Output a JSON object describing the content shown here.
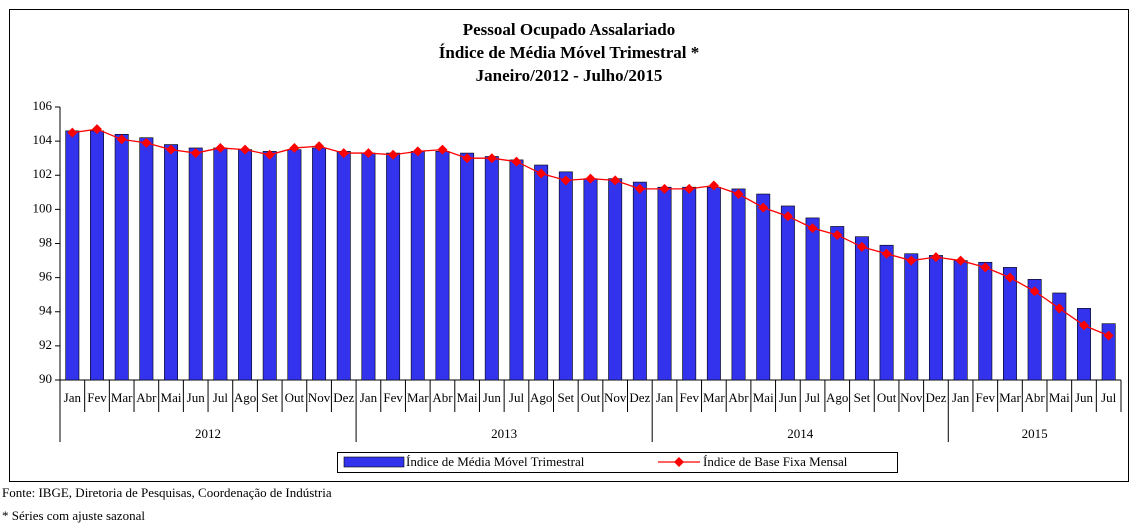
{
  "chart_data": {
    "type": "bar-line",
    "title": [
      "Pessoal Ocupado Assalariado",
      "Índice de Média Móvel Trimestral *",
      "Janeiro/2012 - Julho/2015"
    ],
    "categories": [
      "Jan",
      "Fev",
      "Mar",
      "Abr",
      "Mai",
      "Jun",
      "Jul",
      "Ago",
      "Set",
      "Out",
      "Nov",
      "Dez",
      "Jan",
      "Fev",
      "Mar",
      "Abr",
      "Mai",
      "Jun",
      "Jul",
      "Ago",
      "Set",
      "Out",
      "Nov",
      "Dez",
      "Jan",
      "Fev",
      "Mar",
      "Abr",
      "Mai",
      "Jun",
      "Jul",
      "Ago",
      "Set",
      "Out",
      "Nov",
      "Dez",
      "Jan",
      "Fev",
      "Mar",
      "Abr",
      "Mai",
      "Jun",
      "Jul"
    ],
    "years": [
      "2012",
      "2013",
      "2014",
      "2015"
    ],
    "series": [
      {
        "name": "Índice de Média Móvel Trimestral",
        "kind": "bar",
        "color": "#3333ee",
        "values": [
          104.6,
          104.6,
          104.4,
          104.2,
          103.8,
          103.6,
          103.6,
          103.5,
          103.4,
          103.5,
          103.6,
          103.4,
          103.3,
          103.3,
          103.4,
          103.4,
          103.3,
          103.1,
          102.9,
          102.6,
          102.2,
          101.8,
          101.8,
          101.6,
          101.3,
          101.3,
          101.3,
          101.2,
          100.9,
          100.2,
          99.5,
          99.0,
          98.4,
          97.9,
          97.4,
          97.3,
          97.0,
          96.9,
          96.6,
          95.9,
          95.1,
          94.2,
          93.3
        ]
      },
      {
        "name": "Índice de Base Fixa Mensal",
        "kind": "line",
        "color": "#ff0000",
        "values": [
          104.5,
          104.7,
          104.1,
          103.9,
          103.5,
          103.3,
          103.6,
          103.5,
          103.2,
          103.6,
          103.7,
          103.3,
          103.3,
          103.2,
          103.4,
          103.5,
          103.0,
          103.0,
          102.8,
          102.1,
          101.7,
          101.8,
          101.7,
          101.2,
          101.2,
          101.2,
          101.4,
          100.9,
          100.1,
          99.6,
          98.9,
          98.5,
          97.8,
          97.4,
          97.0,
          97.2,
          97.0,
          96.6,
          96.0,
          95.2,
          94.2,
          93.2,
          92.6
        ]
      }
    ],
    "ylim": [
      90,
      106
    ],
    "yticks": [
      90,
      92,
      94,
      96,
      98,
      100,
      102,
      104,
      106
    ]
  },
  "footer": [
    "Fonte: IBGE, Diretoria de Pesquisas, Coordenação de Indústria",
    "* Séries com ajuste sazonal"
  ]
}
